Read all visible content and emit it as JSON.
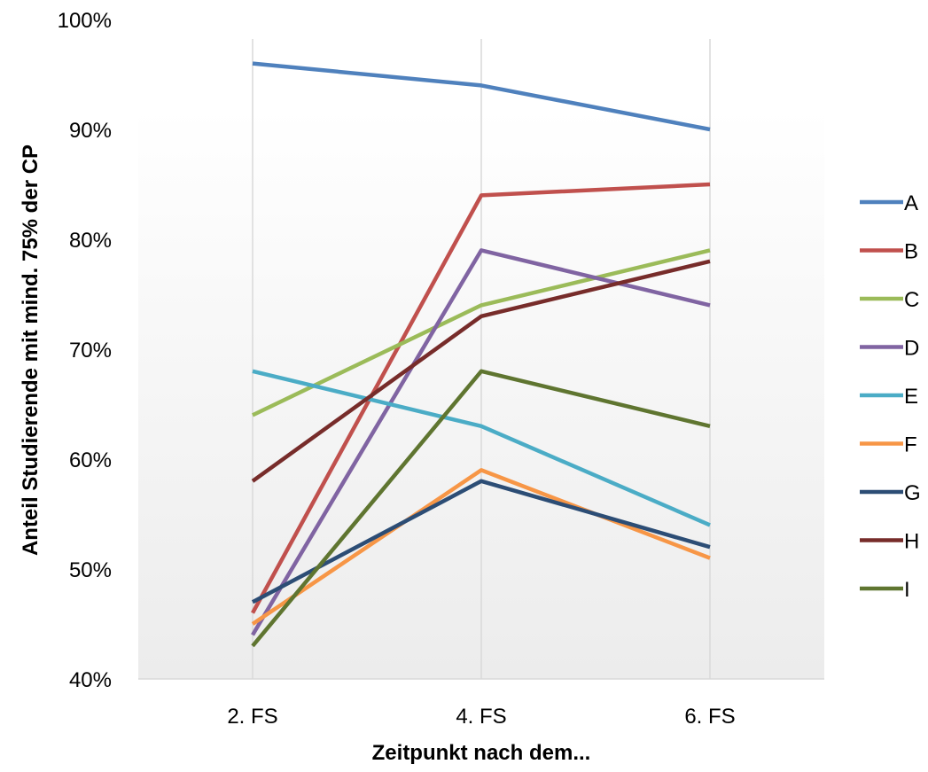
{
  "chart_data": {
    "type": "line",
    "title": "",
    "xlabel": "Zeitpunkt nach dem...",
    "ylabel": "Anteil Studierende mit mind. 75% der CP",
    "categories": [
      "2. FS",
      "4. FS",
      "6. FS"
    ],
    "ylim": [
      0.4,
      1.0
    ],
    "yticks": [
      0.4,
      0.5,
      0.6,
      0.7,
      0.8,
      0.9,
      1.0
    ],
    "ytick_labels": [
      "40%",
      "50%",
      "60%",
      "70%",
      "80%",
      "90%",
      "100%"
    ],
    "grid": "vertical",
    "legend_position": "right",
    "series": [
      {
        "name": "A",
        "color": "#4F81BD",
        "values": [
          0.96,
          0.94,
          0.9
        ]
      },
      {
        "name": "B",
        "color": "#C0504D",
        "values": [
          0.46,
          0.84,
          0.85
        ]
      },
      {
        "name": "C",
        "color": "#9BBB59",
        "values": [
          0.64,
          0.74,
          0.79
        ]
      },
      {
        "name": "D",
        "color": "#8064A2",
        "values": [
          0.44,
          0.79,
          0.74
        ]
      },
      {
        "name": "E",
        "color": "#4BACC6",
        "values": [
          0.68,
          0.63,
          0.54
        ]
      },
      {
        "name": "F",
        "color": "#F79646",
        "values": [
          0.45,
          0.59,
          0.51
        ]
      },
      {
        "name": "G",
        "color": "#2C4D75",
        "values": [
          0.47,
          0.58,
          0.52
        ]
      },
      {
        "name": "H",
        "color": "#772C2A",
        "values": [
          0.58,
          0.73,
          0.78
        ]
      },
      {
        "name": "I",
        "color": "#5F7530",
        "values": [
          0.43,
          0.68,
          0.63
        ]
      }
    ]
  }
}
